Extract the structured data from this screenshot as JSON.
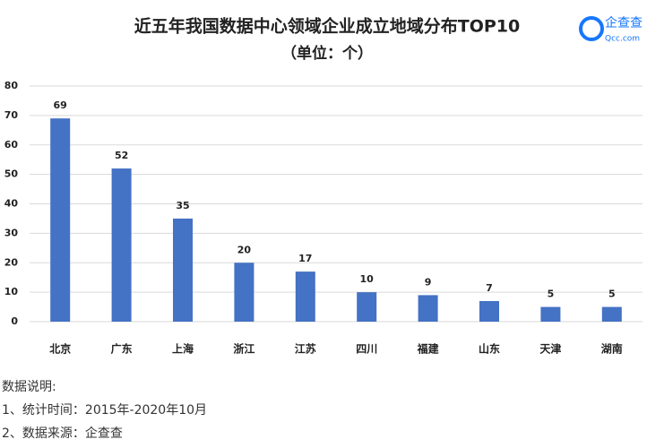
{
  "chart_data": {
    "type": "bar",
    "title": "近五年我国数据中心领域企业成立地域分布TOP10",
    "subtitle": "（单位：个）",
    "categories": [
      "北京",
      "广东",
      "上海",
      "浙江",
      "江苏",
      "四川",
      "福建",
      "山东",
      "天津",
      "湖南"
    ],
    "values": [
      69,
      52,
      35,
      20,
      17,
      10,
      9,
      7,
      5,
      5
    ],
    "color": "#4472c4",
    "ylim": [
      0,
      80
    ],
    "yticks": [
      0,
      10,
      20,
      30,
      40,
      50,
      60,
      70,
      80
    ],
    "grid": true
  },
  "logo": {
    "name": "企查查",
    "domain": "Qcc.com"
  },
  "notes": [
    "数据说明:",
    "1、统计时间：2015年-2020年10月",
    "2、数据来源：企查查"
  ]
}
